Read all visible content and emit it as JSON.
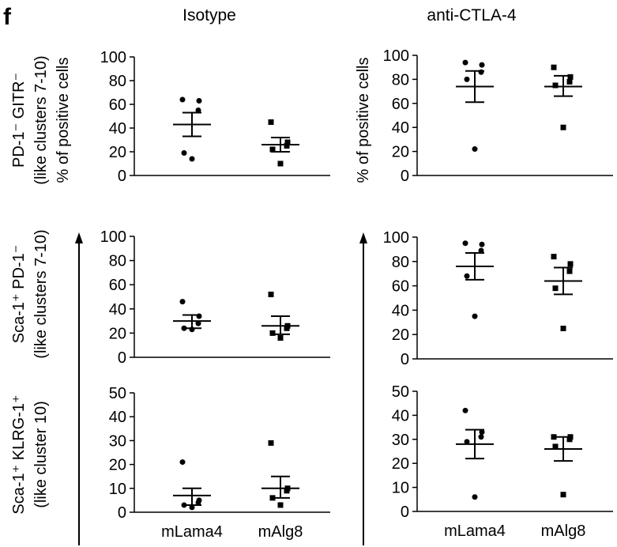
{
  "figure": {
    "panel_letter": "f",
    "columns": [
      "Isotype",
      "anti-CTLA-4"
    ],
    "row_labels": [
      {
        "main": "PD-1⁻ GITR⁻",
        "sub": "(like clusters 7-10)"
      },
      {
        "main": "Sca-1⁺ PD-1⁻",
        "sub": "(like clusters 7-10)"
      },
      {
        "main": "Sca-1⁺ KLRG-1⁺",
        "sub": "(like cluster 10)"
      }
    ],
    "ylabel": "% of positive cells"
  },
  "chart_data": [
    {
      "type": "scatter",
      "column": "Isotype",
      "row": "PD-1⁻ GITR⁻",
      "categories": [
        "mLama4",
        "mAlg8"
      ],
      "ylim": [
        0,
        100
      ],
      "yticks": [
        0,
        20,
        40,
        60,
        80,
        100
      ],
      "ylabel": "% of positive cells",
      "show_xlabels": false,
      "series": [
        {
          "marker": "circle",
          "points": [
            64,
            63,
            55,
            19,
            14
          ],
          "mean": 43,
          "sem_low": 33,
          "sem_high": 53
        },
        {
          "marker": "square",
          "points": [
            45,
            28,
            25,
            22,
            10
          ],
          "mean": 26,
          "sem_low": 20,
          "sem_high": 32
        }
      ]
    },
    {
      "type": "scatter",
      "column": "anti-CTLA-4",
      "row": "PD-1⁻ GITR⁻",
      "categories": [
        "mLama4",
        "mAlg8"
      ],
      "ylim": [
        0,
        100
      ],
      "yticks": [
        0,
        20,
        40,
        60,
        80,
        100
      ],
      "ylabel": "% of positive cells",
      "show_xlabels": false,
      "series": [
        {
          "marker": "circle",
          "points": [
            94,
            92,
            86,
            80,
            22
          ],
          "mean": 74,
          "sem_low": 61,
          "sem_high": 87
        },
        {
          "marker": "square",
          "points": [
            90,
            82,
            78,
            75,
            40
          ],
          "mean": 74,
          "sem_low": 66,
          "sem_high": 83
        }
      ]
    },
    {
      "type": "scatter",
      "column": "Isotype",
      "row": "Sca-1⁺ PD-1⁻",
      "categories": [
        "mLama4",
        "mAlg8"
      ],
      "ylim": [
        0,
        100
      ],
      "yticks": [
        0,
        20,
        40,
        60,
        80,
        100
      ],
      "show_xlabels": false,
      "series": [
        {
          "marker": "circle",
          "points": [
            46,
            34,
            28,
            24,
            23
          ],
          "mean": 30,
          "sem_low": 24,
          "sem_high": 35
        },
        {
          "marker": "square",
          "points": [
            52,
            26,
            24,
            20,
            16
          ],
          "mean": 26,
          "sem_low": 19,
          "sem_high": 34
        }
      ]
    },
    {
      "type": "scatter",
      "column": "anti-CTLA-4",
      "row": "Sca-1⁺ PD-1⁻",
      "categories": [
        "mLama4",
        "mAlg8"
      ],
      "ylim": [
        0,
        100
      ],
      "yticks": [
        0,
        20,
        40,
        60,
        80,
        100
      ],
      "show_xlabels": false,
      "series": [
        {
          "marker": "circle",
          "points": [
            95,
            94,
            89,
            68,
            35
          ],
          "mean": 76,
          "sem_low": 65,
          "sem_high": 87
        },
        {
          "marker": "square",
          "points": [
            84,
            78,
            72,
            58,
            25
          ],
          "mean": 64,
          "sem_low": 53,
          "sem_high": 75
        }
      ]
    },
    {
      "type": "scatter",
      "column": "Isotype",
      "row": "Sca-1⁺ KLRG-1⁺",
      "categories": [
        "mLama4",
        "mAlg8"
      ],
      "ylim": [
        0,
        50
      ],
      "yticks": [
        0,
        10,
        20,
        30,
        40,
        50
      ],
      "show_xlabels": true,
      "series": [
        {
          "marker": "circle",
          "points": [
            21,
            5,
            4,
            3,
            2
          ],
          "mean": 7,
          "sem_low": 3,
          "sem_high": 10
        },
        {
          "marker": "square",
          "points": [
            29,
            10,
            9,
            6,
            3
          ],
          "mean": 10,
          "sem_low": 6,
          "sem_high": 15
        }
      ]
    },
    {
      "type": "scatter",
      "column": "anti-CTLA-4",
      "row": "Sca-1⁺ KLRG-1⁺",
      "categories": [
        "mLama4",
        "mAlg8"
      ],
      "ylim": [
        0,
        50
      ],
      "yticks": [
        0,
        10,
        20,
        30,
        40,
        50
      ],
      "show_xlabels": true,
      "series": [
        {
          "marker": "circle",
          "points": [
            42,
            33,
            31,
            29,
            6
          ],
          "mean": 28,
          "sem_low": 22,
          "sem_high": 34
        },
        {
          "marker": "square",
          "points": [
            31,
            31,
            30,
            27,
            7
          ],
          "mean": 26,
          "sem_low": 21,
          "sem_high": 31
        }
      ]
    }
  ]
}
